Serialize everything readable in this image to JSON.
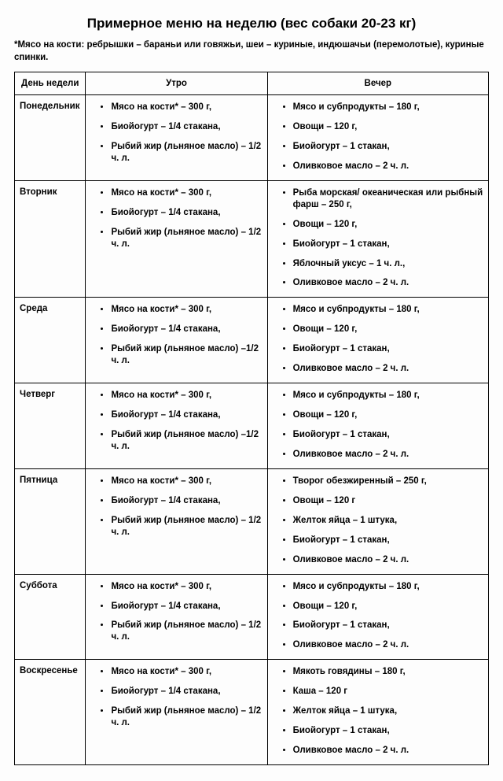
{
  "title": "Примерное меню на неделю (вес собаки 20-23 кг)",
  "footnote": "*Мясо на кости: ребрышки – бараньи или говяжьи, шеи – куриные, индюшачьи (перемолотые), куриные спинки.",
  "headers": {
    "day": "День недели",
    "morning": "Утро",
    "evening": "Вечер"
  },
  "rows": [
    {
      "day": "Понедельник",
      "morning": [
        "Мясо на кости* – 300 г,",
        "Биойогурт – 1/4 стакана,",
        "Рыбий жир (льняное масло) – 1/2 ч. л."
      ],
      "evening": [
        "Мясо и субпродукты – 180 г,",
        "Овощи – 120 г,",
        "Биойогурт – 1 стакан,",
        "Оливковое масло – 2 ч. л."
      ]
    },
    {
      "day": "Вторник",
      "morning": [
        "Мясо на кости* – 300 г,",
        "Биойогурт – 1/4 стакана,",
        "Рыбий жир (льняное масло) – 1/2 ч. л."
      ],
      "evening": [
        "Рыба морская/ океаническая или рыбный фарш – 250 г,",
        "Овощи – 120 г,",
        "Биойогурт – 1 стакан,",
        "Яблочный уксус – 1 ч. л.,",
        "Оливковое масло – 2 ч. л."
      ]
    },
    {
      "day": "Среда",
      "morning": [
        "Мясо на кости* – 300 г,",
        "Биойогурт – 1/4 стакана,",
        "Рыбий жир (льняное масло) –1/2 ч. л."
      ],
      "evening": [
        "Мясо и субпродукты – 180 г,",
        "Овощи – 120 г,",
        "Биойогурт – 1 стакан,",
        "Оливковое масло – 2 ч. л."
      ]
    },
    {
      "day": "Четверг",
      "morning": [
        "Мясо на кости* – 300 г,",
        "Биойогурт – 1/4 стакана,",
        "Рыбий жир (льняное масло) –1/2 ч. л."
      ],
      "evening": [
        "Мясо и субпродукты – 180 г,",
        "Овощи – 120 г,",
        "Биойогурт – 1 стакан,",
        "Оливковое масло – 2 ч. л."
      ]
    },
    {
      "day": "Пятница",
      "morning": [
        "Мясо на кости* – 300 г,",
        "Биойогурт – 1/4 стакана,",
        "Рыбий жир (льняное масло) – 1/2 ч. л."
      ],
      "evening": [
        "Творог обезжиренный – 250 г,",
        "Овощи – 120 г",
        "Желток яйца – 1 штука,",
        "Биойогурт – 1 стакан,",
        "Оливковое масло – 2 ч. л."
      ]
    },
    {
      "day": "Суббота",
      "morning": [
        "Мясо на кости* – 300 г,",
        "Биойогурт – 1/4 стакана,",
        "Рыбий жир (льняное масло) – 1/2 ч. л."
      ],
      "evening": [
        "Мясо и субпродукты – 180 г,",
        "Овощи – 120 г,",
        "Биойогурт – 1 стакан,",
        "Оливковое масло – 2 ч. л."
      ]
    },
    {
      "day": "Воскресенье",
      "morning": [
        "Мясо на кости* – 300 г,",
        "Биойогурт – 1/4 стакана,",
        "Рыбий жир (льняное масло) – 1/2 ч. л."
      ],
      "evening": [
        "Мякоть говядины – 180 г,",
        "Каша – 120 г",
        "Желток яйца – 1 штука,",
        "Биойогурт – 1 стакан,",
        "Оливковое масло – 2 ч. л."
      ]
    }
  ]
}
